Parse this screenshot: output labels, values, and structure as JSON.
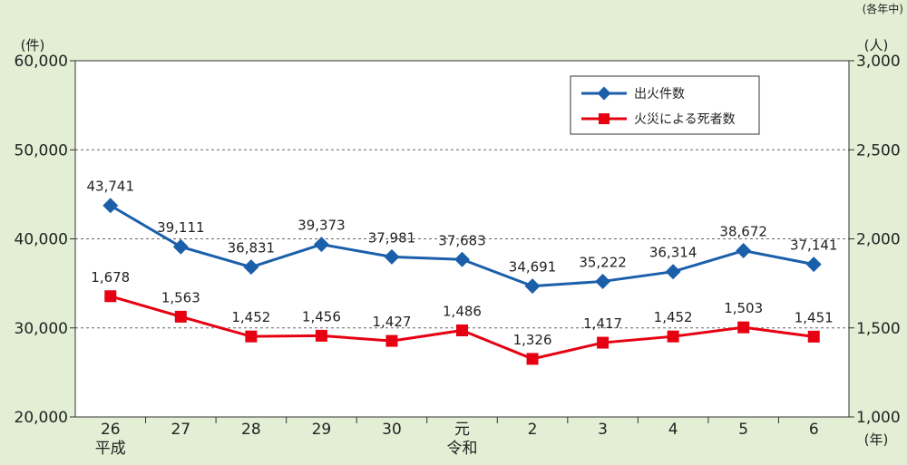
{
  "chart_data": {
    "type": "line",
    "note": "(各年中)",
    "x_unit": "(年)",
    "left_unit": "(件)",
    "right_unit": "(人)",
    "categories": [
      {
        "label": "26",
        "era": "平成"
      },
      {
        "label": "27",
        "era": ""
      },
      {
        "label": "28",
        "era": ""
      },
      {
        "label": "29",
        "era": ""
      },
      {
        "label": "30",
        "era": ""
      },
      {
        "label": "元",
        "era": "令和"
      },
      {
        "label": "2",
        "era": ""
      },
      {
        "label": "3",
        "era": ""
      },
      {
        "label": "4",
        "era": ""
      },
      {
        "label": "5",
        "era": ""
      },
      {
        "label": "6",
        "era": ""
      }
    ],
    "left_axis": {
      "ylim": [
        20000,
        60000
      ],
      "ticks": [
        20000,
        30000,
        40000,
        50000,
        60000
      ],
      "tick_labels": [
        "20,000",
        "30,000",
        "40,000",
        "50,000",
        "60,000"
      ]
    },
    "right_axis": {
      "ylim": [
        1000,
        3000
      ],
      "ticks": [
        1000,
        1500,
        2000,
        2500,
        3000
      ],
      "tick_labels": [
        "1,000",
        "1,500",
        "2,000",
        "2,500",
        "3,000"
      ]
    },
    "grid": {
      "horizontal": true,
      "style": "dashed"
    },
    "legend": {
      "position": "top-right"
    },
    "series": [
      {
        "name": "出火件数",
        "axis": "left",
        "color": "#1b5faa",
        "marker": "diamond",
        "values": [
          43741,
          39111,
          36831,
          39373,
          37981,
          37683,
          34691,
          35222,
          36314,
          38672,
          37141
        ],
        "labels": [
          "43,741",
          "39,111",
          "36,831",
          "39,373",
          "37,981",
          "37,683",
          "34,691",
          "35,222",
          "36,314",
          "38,672",
          "37,141"
        ]
      },
      {
        "name": "火災による死者数",
        "axis": "right",
        "color": "#e60012",
        "marker": "square",
        "values": [
          1678,
          1563,
          1452,
          1456,
          1427,
          1486,
          1326,
          1417,
          1452,
          1503,
          1451
        ],
        "labels": [
          "1,678",
          "1,563",
          "1,452",
          "1,456",
          "1,427",
          "1,486",
          "1,326",
          "1,417",
          "1,452",
          "1,503",
          "1,451"
        ]
      }
    ]
  }
}
